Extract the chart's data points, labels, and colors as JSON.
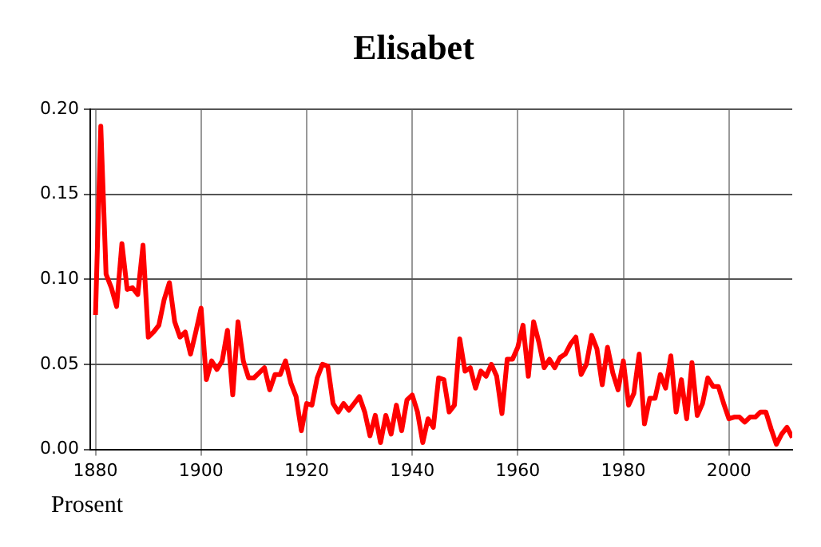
{
  "chart_data": {
    "type": "line",
    "title": "Elisabet",
    "annotations": [
      "Prosent"
    ],
    "x": [
      1880,
      1881,
      1882,
      1883,
      1884,
      1885,
      1886,
      1887,
      1888,
      1889,
      1890,
      1891,
      1892,
      1893,
      1894,
      1895,
      1896,
      1897,
      1898,
      1899,
      1900,
      1901,
      1902,
      1903,
      1904,
      1905,
      1906,
      1907,
      1908,
      1909,
      1910,
      1911,
      1912,
      1913,
      1914,
      1915,
      1916,
      1917,
      1918,
      1919,
      1920,
      1921,
      1922,
      1923,
      1924,
      1925,
      1926,
      1927,
      1928,
      1929,
      1930,
      1931,
      1932,
      1933,
      1934,
      1935,
      1936,
      1937,
      1938,
      1939,
      1940,
      1941,
      1942,
      1943,
      1944,
      1945,
      1946,
      1947,
      1948,
      1949,
      1950,
      1951,
      1952,
      1953,
      1954,
      1955,
      1956,
      1957,
      1958,
      1959,
      1960,
      1961,
      1962,
      1963,
      1964,
      1965,
      1966,
      1967,
      1968,
      1969,
      1970,
      1971,
      1972,
      1973,
      1974,
      1975,
      1976,
      1977,
      1978,
      1979,
      1980,
      1981,
      1982,
      1983,
      1984,
      1985,
      1986,
      1987,
      1988,
      1989,
      1990,
      1991,
      1992,
      1993,
      1994,
      1995,
      1996,
      1997,
      1998,
      1999,
      2000,
      2001,
      2002,
      2003,
      2004,
      2005,
      2006,
      2007,
      2008,
      2009,
      2010,
      2011,
      2012
    ],
    "series": [
      {
        "color": "#ff0000",
        "values": [
          0.079,
          0.19,
          0.103,
          0.095,
          0.084,
          0.121,
          0.094,
          0.095,
          0.091,
          0.12,
          0.066,
          0.069,
          0.073,
          0.088,
          0.098,
          0.075,
          0.066,
          0.069,
          0.056,
          0.069,
          0.083,
          0.041,
          0.052,
          0.047,
          0.052,
          0.07,
          0.032,
          0.075,
          0.052,
          0.042,
          0.042,
          0.045,
          0.048,
          0.035,
          0.044,
          0.044,
          0.052,
          0.039,
          0.031,
          0.011,
          0.027,
          0.026,
          0.042,
          0.05,
          0.049,
          0.027,
          0.022,
          0.027,
          0.023,
          0.027,
          0.031,
          0.022,
          0.008,
          0.02,
          0.004,
          0.02,
          0.009,
          0.026,
          0.011,
          0.029,
          0.032,
          0.022,
          0.004,
          0.018,
          0.013,
          0.042,
          0.041,
          0.022,
          0.026,
          0.065,
          0.046,
          0.048,
          0.036,
          0.046,
          0.043,
          0.05,
          0.043,
          0.021,
          0.053,
          0.053,
          0.06,
          0.073,
          0.043,
          0.075,
          0.063,
          0.048,
          0.053,
          0.048,
          0.054,
          0.056,
          0.062,
          0.066,
          0.044,
          0.05,
          0.067,
          0.059,
          0.038,
          0.06,
          0.045,
          0.035,
          0.052,
          0.026,
          0.033,
          0.056,
          0.015,
          0.03,
          0.03,
          0.044,
          0.036,
          0.055,
          0.022,
          0.041,
          0.018,
          0.051,
          0.02,
          0.027,
          0.042,
          0.037,
          0.037,
          0.027,
          0.018,
          0.019,
          0.019,
          0.016,
          0.019,
          0.019,
          0.022,
          0.022,
          0.012,
          0.003,
          0.009,
          0.013,
          0.007
        ]
      }
    ],
    "xlim": [
      1879,
      2012
    ],
    "xticks": [
      1880,
      1900,
      1920,
      1940,
      1960,
      1980,
      2000
    ],
    "ylim": [
      0,
      0.2
    ],
    "yticks": [
      {
        "value": 0,
        "label": "0.00"
      },
      {
        "value": 0.05,
        "label": "0.05"
      },
      {
        "value": 0.1,
        "label": "0.10"
      },
      {
        "value": 0.15,
        "label": "0.15"
      },
      {
        "value": 0.2,
        "label": "0.20"
      }
    ],
    "grid": true,
    "legend": false
  }
}
